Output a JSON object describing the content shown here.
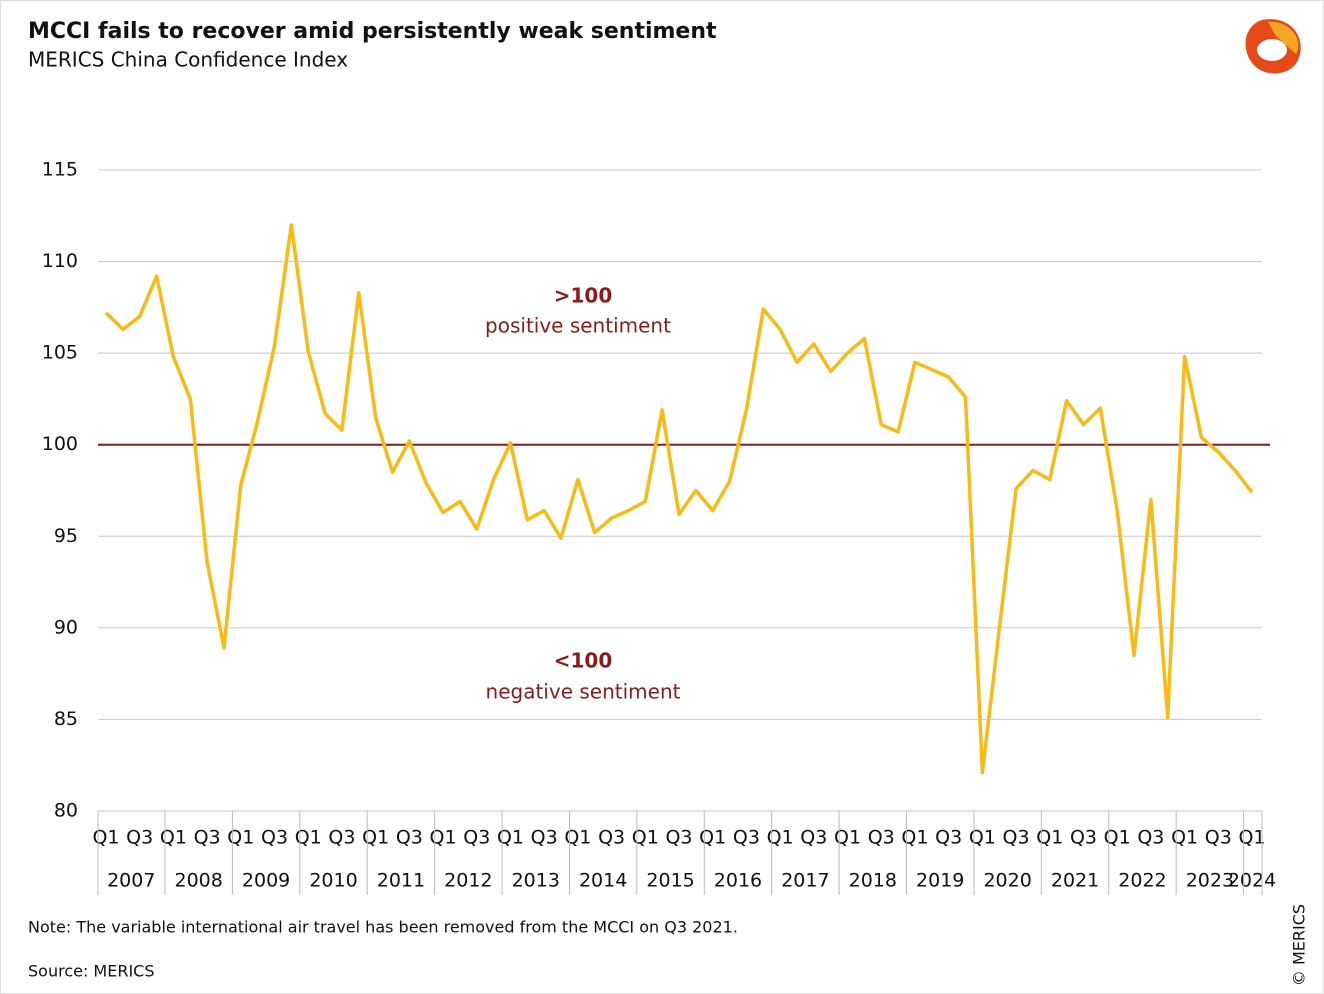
{
  "chart_data": {
    "type": "line",
    "title": "MCCI fails to recover amid persistently weak sentiment",
    "subtitle": "MERICS China Confidence Index",
    "categories": [
      "Q1",
      null,
      "Q3",
      null,
      "Q1",
      null,
      "Q3",
      null,
      "Q1",
      null,
      "Q3",
      null,
      "Q1",
      null,
      "Q3",
      null,
      "Q1",
      null,
      "Q3",
      null,
      "Q1",
      null,
      "Q3",
      null,
      "Q1",
      null,
      "Q3",
      null,
      "Q1",
      null,
      "Q3",
      null,
      "Q1",
      null,
      "Q3",
      null,
      "Q1",
      null,
      "Q3",
      null,
      "Q1",
      null,
      "Q3",
      null,
      "Q1",
      null,
      "Q3",
      null,
      "Q1",
      null,
      "Q3",
      null,
      "Q1",
      null,
      "Q3",
      null,
      "Q1",
      null,
      "Q3",
      null,
      "Q1",
      null,
      "Q3",
      null,
      "Q1",
      null,
      "Q3",
      null,
      "Q1"
    ],
    "years": [
      "2007",
      "2008",
      "2009",
      "2010",
      "2011",
      "2012",
      "2013",
      "2014",
      "2015",
      "2016",
      "2017",
      "2018",
      "2019",
      "2020",
      "2021",
      "2022",
      "2023",
      "2024"
    ],
    "series": [
      {
        "name": "MERICS China Confidence Index",
        "color": "#fbb913",
        "values": [
          107.2,
          106.3,
          107.0,
          109.2,
          104.8,
          102.5,
          93.6,
          88.9,
          97.8,
          101.3,
          105.4,
          112.0,
          105.1,
          101.7,
          100.8,
          108.3,
          101.5,
          98.5,
          100.2,
          97.9,
          96.3,
          96.9,
          95.4,
          98.1,
          100.1,
          95.9,
          96.4,
          94.9,
          98.1,
          95.2,
          96.0,
          96.4,
          96.9,
          101.9,
          96.2,
          97.5,
          96.4,
          98.0,
          101.9,
          107.4,
          106.3,
          104.5,
          105.5,
          104.0,
          105.0,
          105.8,
          101.1,
          100.7,
          104.5,
          104.1,
          103.7,
          102.6,
          82.1,
          89.9,
          97.6,
          98.6,
          98.1,
          102.4,
          101.1,
          102.0,
          96.4,
          88.5,
          97.0,
          85.1,
          104.8,
          100.4,
          99.6,
          98.6,
          97.4
        ]
      }
    ],
    "ylim": [
      80,
      115
    ],
    "yticks": [
      80,
      85,
      90,
      95,
      100,
      105,
      110,
      115
    ],
    "grid": true,
    "reference_line": {
      "value": 100,
      "color": "#8b1a1a"
    },
    "annotations": [
      {
        "label": ">100",
        "text": "positive sentiment"
      },
      {
        "label": "<100",
        "text": "negative sentiment"
      }
    ],
    "note": "Note: The variable international air travel has been removed from the MCCI on Q3 2021.",
    "source": "Source: MERICS",
    "copyright": "© MERICS"
  }
}
